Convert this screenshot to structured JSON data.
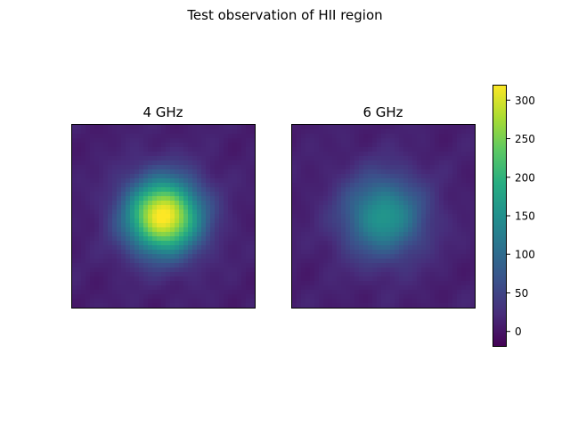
{
  "figure": {
    "title": "Test observation of HII region"
  },
  "chart_data": [
    {
      "type": "heatmap",
      "title": "4 GHz",
      "xlabel": "",
      "ylabel": "",
      "axis_ticks": "hidden",
      "source": {
        "shape": "circular gaussian blob",
        "peak_value": 320,
        "center": [
          0.5,
          0.5
        ],
        "fwhm_fraction": 0.33
      },
      "background": {
        "value": 10,
        "noise_amplitude": 8
      }
    },
    {
      "type": "heatmap",
      "title": "6 GHz",
      "xlabel": "",
      "ylabel": "",
      "axis_ticks": "hidden",
      "source": {
        "shape": "circular gaussian blob",
        "peak_value": 150,
        "center": [
          0.5,
          0.5
        ],
        "fwhm_fraction": 0.36
      },
      "background": {
        "value": 10,
        "noise_amplitude": 8
      }
    }
  ],
  "colorbar": {
    "colormap": "viridis",
    "vmin": -20,
    "vmax": 320,
    "ticks": [
      0,
      50,
      100,
      150,
      200,
      250,
      300
    ],
    "tick_labels": [
      "0",
      "50",
      "100",
      "150",
      "200",
      "250",
      "300"
    ]
  }
}
